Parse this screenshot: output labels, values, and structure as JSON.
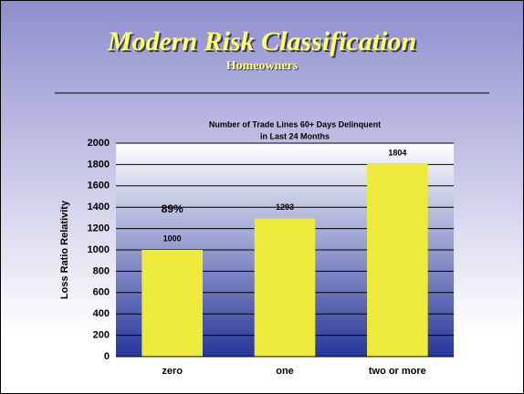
{
  "slide": {
    "title": "Modern Risk Classification",
    "subtitle": "Homeowners"
  },
  "chart_data": {
    "type": "bar",
    "title_lines": [
      "Number of Trade Lines 60+ Days Delinquent",
      "in Last 24 Months"
    ],
    "ylabel": "Loss Ratio Relativity",
    "categories": [
      "zero",
      "one",
      "two or more"
    ],
    "values": [
      1000,
      1293,
      1804
    ],
    "color": "#eeea3c",
    "ylim": [
      0,
      2000
    ],
    "yticks": [
      0,
      200,
      400,
      600,
      800,
      1000,
      1200,
      1400,
      1600,
      1800,
      2000
    ],
    "grid": true,
    "annotations": [
      "89%"
    ]
  }
}
